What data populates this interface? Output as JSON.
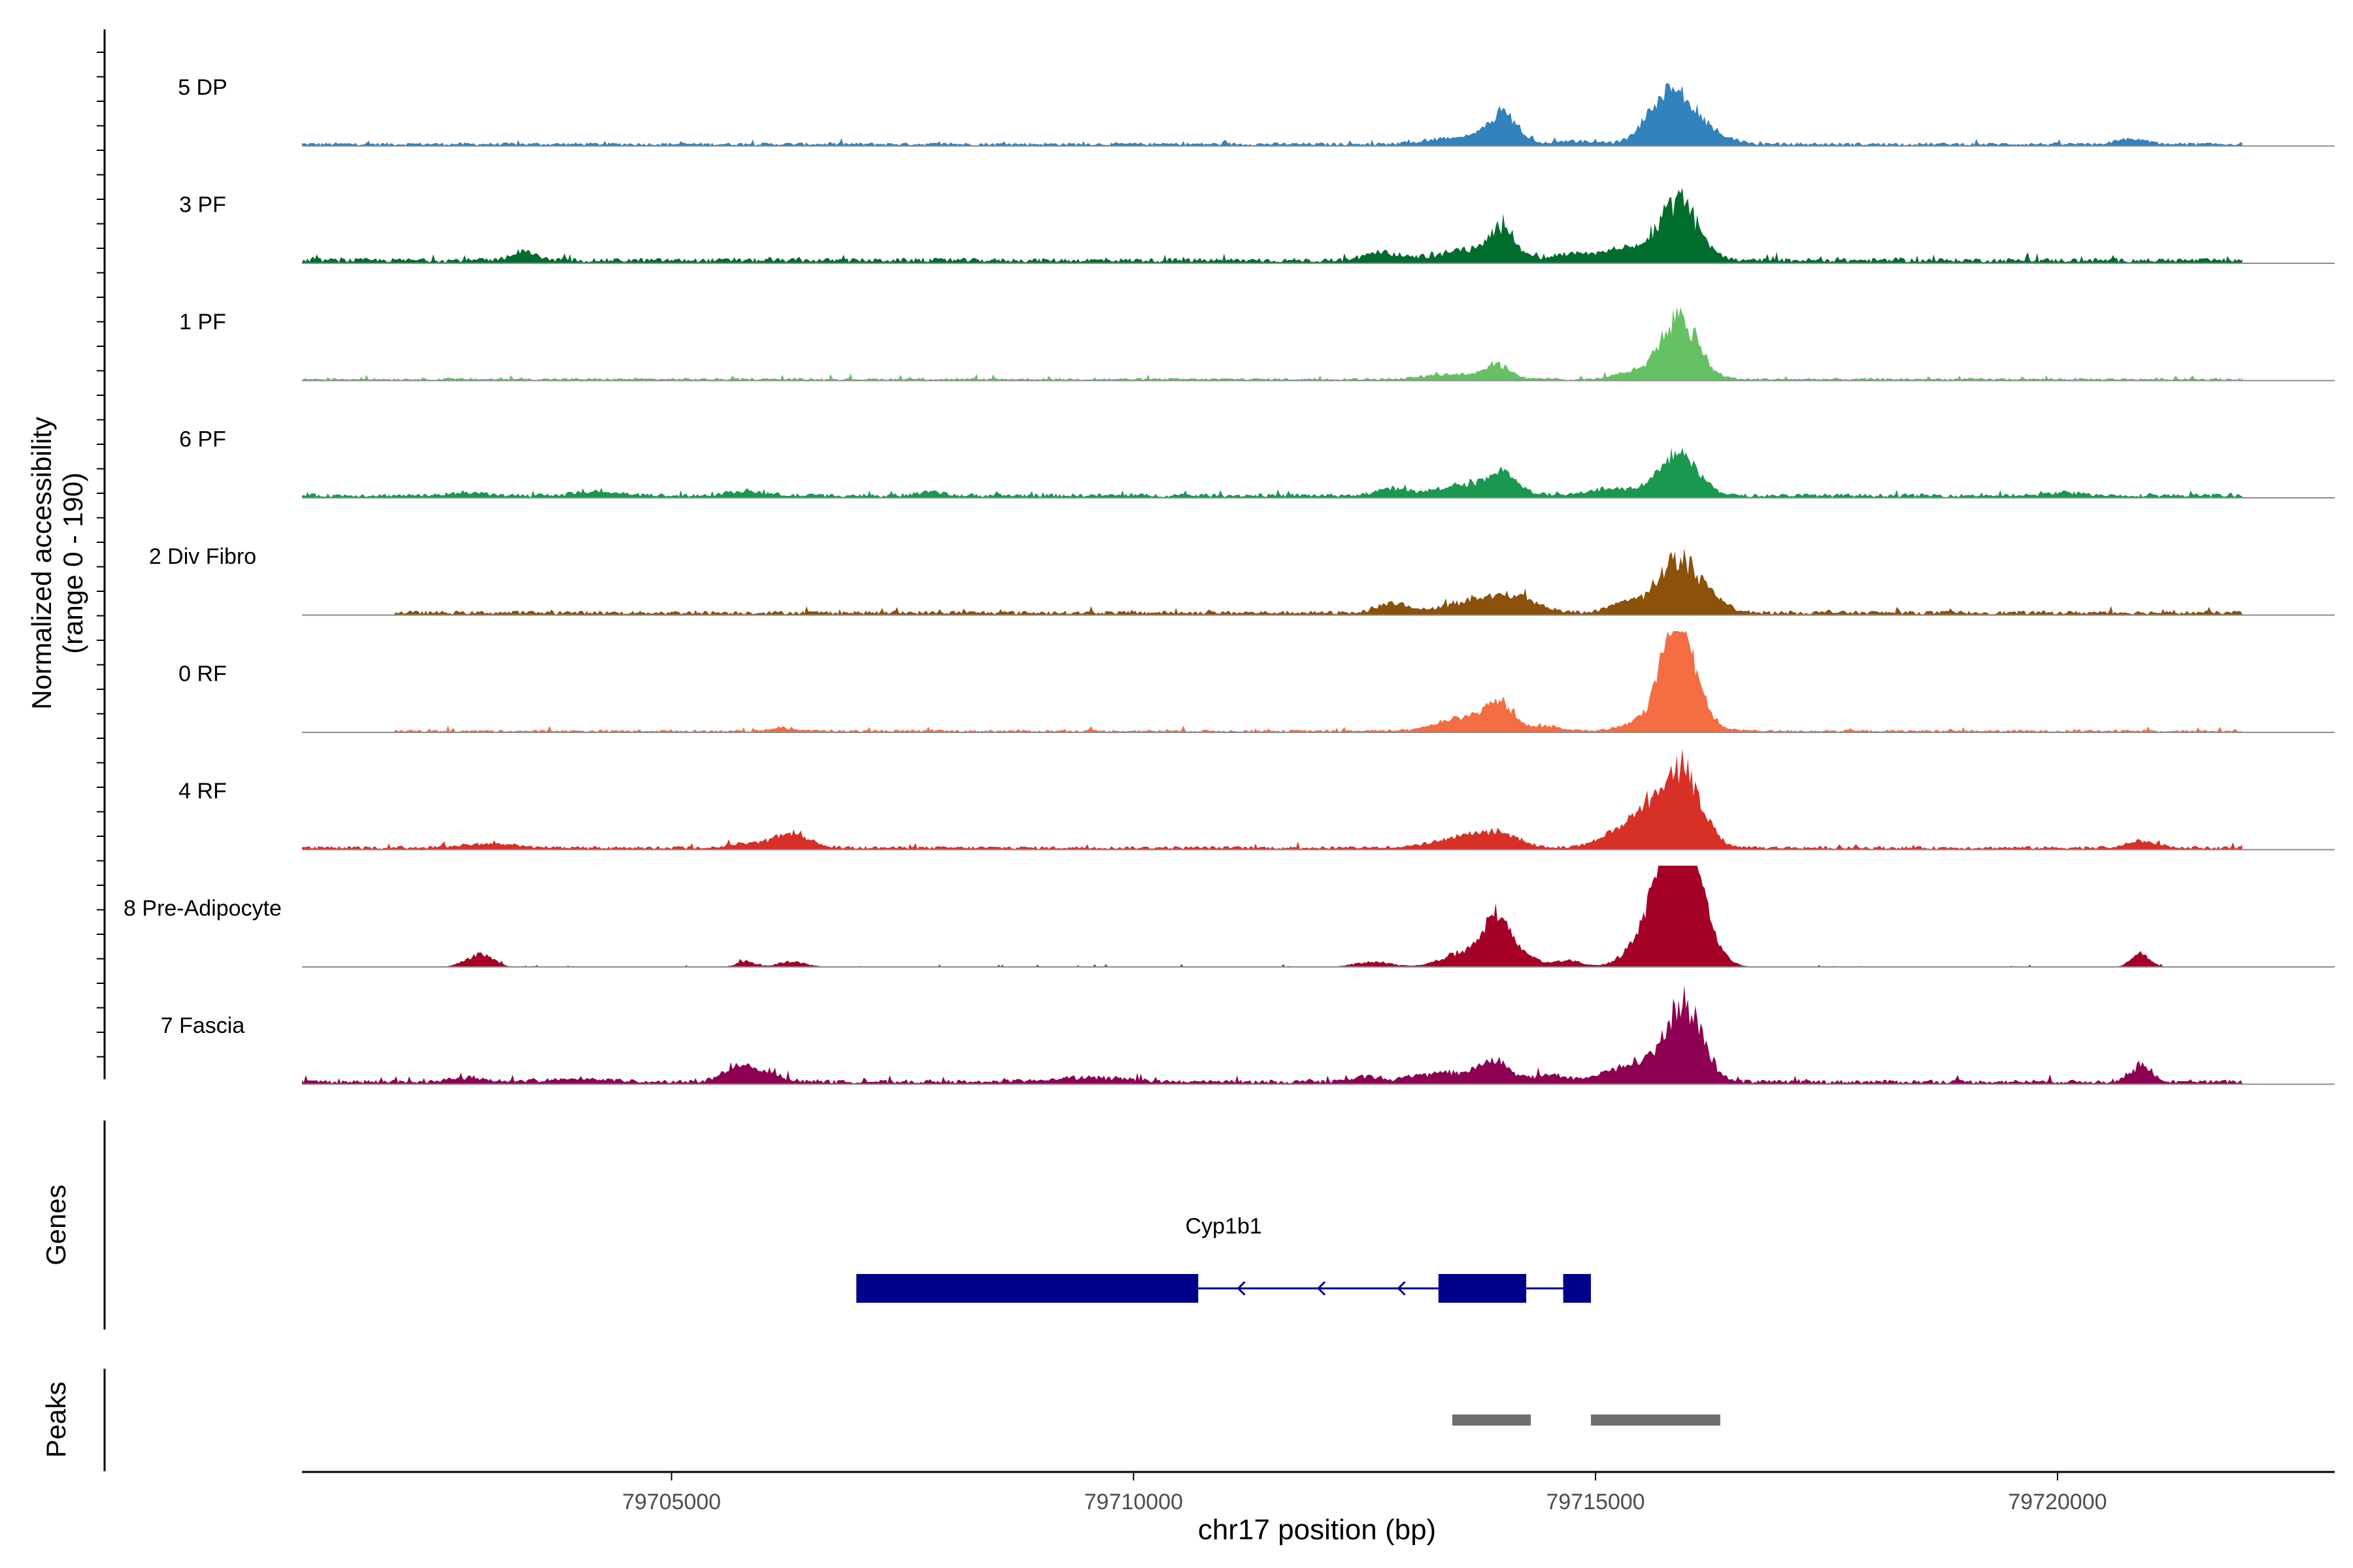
{
  "chart_data": {
    "type": "area",
    "title": "",
    "ylabel_line1": "Normalized accessibility",
    "ylabel_line2": "(range 0 - 190)",
    "xlabel": "chr17 position (bp)",
    "x_range": [
      79701000,
      79723000
    ],
    "y_range": [
      0,
      190
    ],
    "x_ticks": [
      79705000,
      79710000,
      79715000,
      79720000
    ],
    "x_tick_labels": [
      "79705000",
      "79710000",
      "79715000",
      "79720000"
    ],
    "series": [
      {
        "name": "5 DP",
        "color": "#3182BD",
        "base": 4,
        "noise": 3,
        "startBp": 79701000,
        "endBp": 79722000,
        "peaks": [
          [
            79713500,
            300,
            12
          ],
          [
            79714000,
            160,
            55
          ],
          [
            79714800,
            200,
            6
          ],
          [
            79715650,
            200,
            25
          ],
          [
            79715900,
            230,
            90
          ],
          [
            79716400,
            150,
            8
          ],
          [
            79720800,
            150,
            10
          ]
        ]
      },
      {
        "name": "3 PF",
        "color": "#006D2C",
        "base": 6,
        "noise": 4,
        "startBp": 79701000,
        "endBp": 79722000,
        "peaks": [
          [
            79703400,
            150,
            14
          ],
          [
            79712700,
            200,
            15
          ],
          [
            79713600,
            300,
            18
          ],
          [
            79714000,
            140,
            55
          ],
          [
            79714700,
            200,
            12
          ],
          [
            79715300,
            250,
            20
          ],
          [
            79715900,
            210,
            110
          ]
        ]
      },
      {
        "name": "1 PF",
        "color": "#66C164",
        "base": 3,
        "noise": 3,
        "startBp": 79701000,
        "endBp": 79722000,
        "peaks": [
          [
            79713500,
            300,
            10
          ],
          [
            79713950,
            140,
            24
          ],
          [
            79715400,
            180,
            12
          ],
          [
            79715900,
            200,
            115
          ]
        ]
      },
      {
        "name": "6 PF",
        "color": "#1A9850",
        "base": 5,
        "noise": 3,
        "startBp": 79701000,
        "endBp": 79722000,
        "peaks": [
          [
            79702800,
            150,
            6
          ],
          [
            79704200,
            200,
            8
          ],
          [
            79705800,
            200,
            8
          ],
          [
            79707800,
            120,
            8
          ],
          [
            79712800,
            150,
            14
          ],
          [
            79713700,
            350,
            22
          ],
          [
            79714000,
            140,
            30
          ],
          [
            79715200,
            250,
            12
          ],
          [
            79715900,
            210,
            80
          ],
          [
            79720100,
            150,
            6
          ]
        ]
      },
      {
        "name": "2 Div Fibro",
        "color": "#8C510A",
        "base": 5,
        "noise": 4,
        "startBp": 79702000,
        "endBp": 79722000,
        "peaks": [
          [
            79712800,
            150,
            18
          ],
          [
            79713800,
            350,
            28
          ],
          [
            79714200,
            200,
            15
          ],
          [
            79715300,
            150,
            20
          ],
          [
            79715900,
            230,
            100
          ],
          [
            79716300,
            150,
            12
          ]
        ]
      },
      {
        "name": "0 RF",
        "color": "#F46D43",
        "base": 3,
        "noise": 3,
        "startBp": 79702000,
        "endBp": 79722000,
        "peaks": [
          [
            79706200,
            150,
            6
          ],
          [
            79713600,
            300,
            25
          ],
          [
            79713950,
            150,
            45
          ],
          [
            79714500,
            150,
            10
          ],
          [
            79715400,
            150,
            15
          ],
          [
            79715850,
            160,
            180
          ],
          [
            79716000,
            200,
            60
          ]
        ]
      },
      {
        "name": "4 RF",
        "color": "#D73027",
        "base": 4,
        "noise": 3,
        "startBp": 79701000,
        "endBp": 79722000,
        "peaks": [
          [
            79703000,
            300,
            8
          ],
          [
            79705800,
            200,
            8
          ],
          [
            79706300,
            200,
            25
          ],
          [
            79713600,
            300,
            22
          ],
          [
            79714000,
            200,
            20
          ],
          [
            79715200,
            200,
            22
          ],
          [
            79715500,
            180,
            40
          ],
          [
            79715900,
            220,
            150
          ],
          [
            79720900,
            150,
            12
          ]
        ]
      },
      {
        "name": "8 Pre-Adipocyte",
        "color": "#A50026",
        "base": 0,
        "noise": 2,
        "startBp": 79702500,
        "endBp": 79722000,
        "peaks": [
          [
            79702900,
            150,
            18
          ],
          [
            79703000,
            100,
            8
          ],
          [
            79705800,
            100,
            10
          ],
          [
            79706300,
            150,
            10
          ],
          [
            79712600,
            200,
            10
          ],
          [
            79713500,
            200,
            22
          ],
          [
            79713800,
            150,
            30
          ],
          [
            79713950,
            120,
            80
          ],
          [
            79714200,
            150,
            25
          ],
          [
            79714700,
            150,
            12
          ],
          [
            79715500,
            200,
            40
          ],
          [
            79715700,
            150,
            80
          ],
          [
            79715850,
            160,
            140
          ],
          [
            79716050,
            150,
            150
          ],
          [
            79716300,
            150,
            20
          ],
          [
            79720900,
            100,
            25
          ]
        ]
      },
      {
        "name": "7 Fascia",
        "color": "#8E0152",
        "base": 5,
        "noise": 4,
        "startBp": 79701000,
        "endBp": 79722000,
        "peaks": [
          [
            79702800,
            200,
            8
          ],
          [
            79704000,
            300,
            6
          ],
          [
            79705700,
            150,
            25
          ],
          [
            79706000,
            200,
            15
          ],
          [
            79709500,
            400,
            8
          ],
          [
            79712500,
            150,
            8
          ],
          [
            79713400,
            350,
            18
          ],
          [
            79713900,
            150,
            35
          ],
          [
            79714500,
            200,
            12
          ],
          [
            79715200,
            200,
            18
          ],
          [
            79715500,
            180,
            25
          ],
          [
            79715950,
            200,
            145
          ],
          [
            79720900,
            120,
            30
          ]
        ]
      }
    ],
    "genes": [
      {
        "name": "Cyp1b1",
        "strand": "-",
        "start": 79707000,
        "end": 79714950,
        "exons": [
          [
            79707000,
            79710700
          ],
          [
            79713300,
            79714250
          ],
          [
            79714650,
            79714950
          ]
        ],
        "color": "#00008B"
      }
    ],
    "peak_regions": [
      [
        79713450,
        79714300
      ],
      [
        79714950,
        79716350
      ]
    ],
    "peak_color": "#6E6E6E",
    "genes_track_label": "Genes",
    "peaks_track_label": "Peaks"
  }
}
